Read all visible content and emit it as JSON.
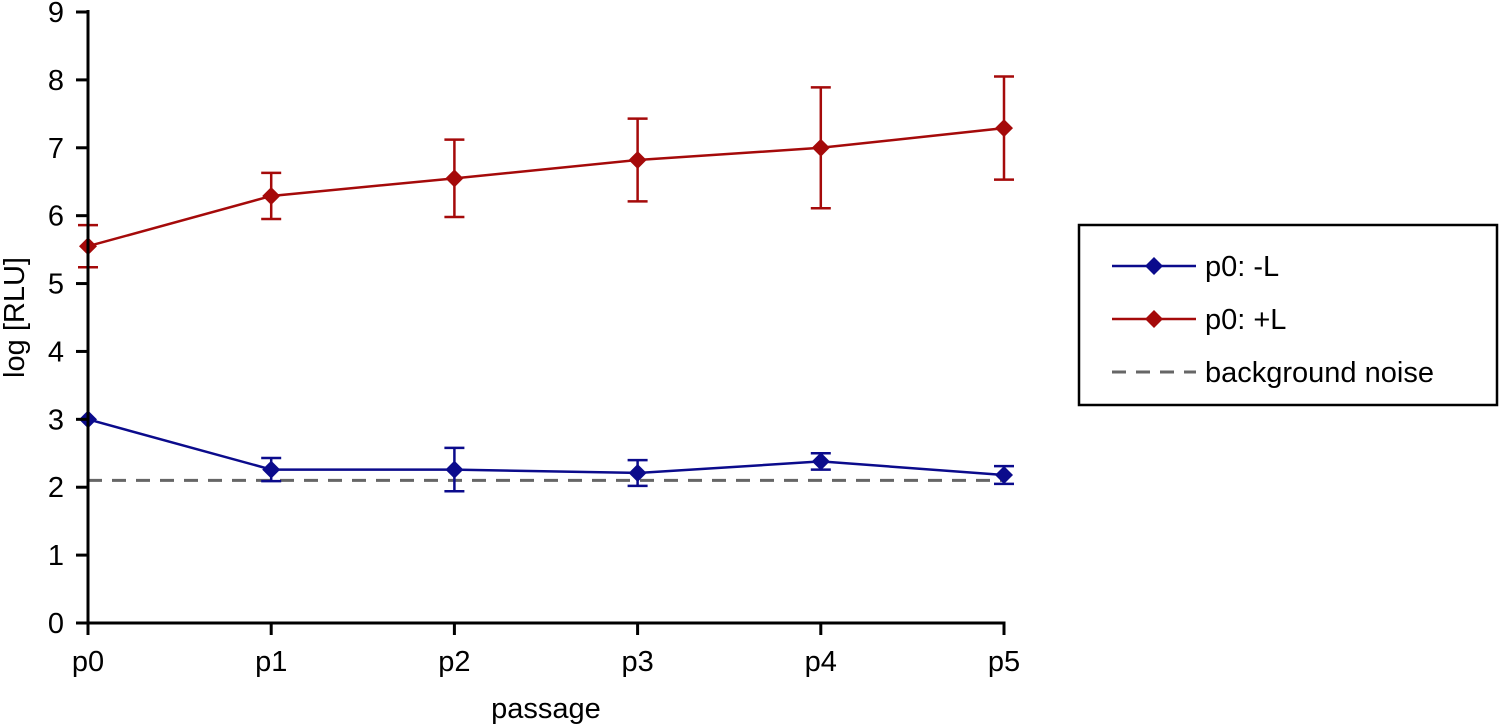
{
  "chart_data": {
    "type": "line",
    "title": "",
    "xlabel": "passage",
    "ylabel": "log [RLU]",
    "categories": [
      "p0",
      "p1",
      "p2",
      "p3",
      "p4",
      "p5"
    ],
    "ylim": [
      0,
      9
    ],
    "yticks": [
      0,
      1,
      2,
      3,
      4,
      5,
      6,
      7,
      8,
      9
    ],
    "grid": false,
    "legend_position": "right",
    "series": [
      {
        "name": "p0: -L",
        "color": "#0b0b8c",
        "marker": "diamond",
        "values": [
          3.0,
          2.26,
          2.26,
          2.21,
          2.38,
          2.18
        ],
        "errors": [
          0.0,
          0.17,
          0.32,
          0.19,
          0.12,
          0.13
        ]
      },
      {
        "name": "p0: +L",
        "color": "#a50a0a",
        "marker": "diamond",
        "values": [
          5.55,
          6.29,
          6.55,
          6.82,
          7.0,
          7.29
        ],
        "errors": [
          0.31,
          0.34,
          0.57,
          0.61,
          0.89,
          0.76
        ]
      }
    ],
    "reference_lines": [
      {
        "name": "background noise",
        "value": 2.1,
        "color": "#666666",
        "style": "dashed"
      }
    ]
  }
}
